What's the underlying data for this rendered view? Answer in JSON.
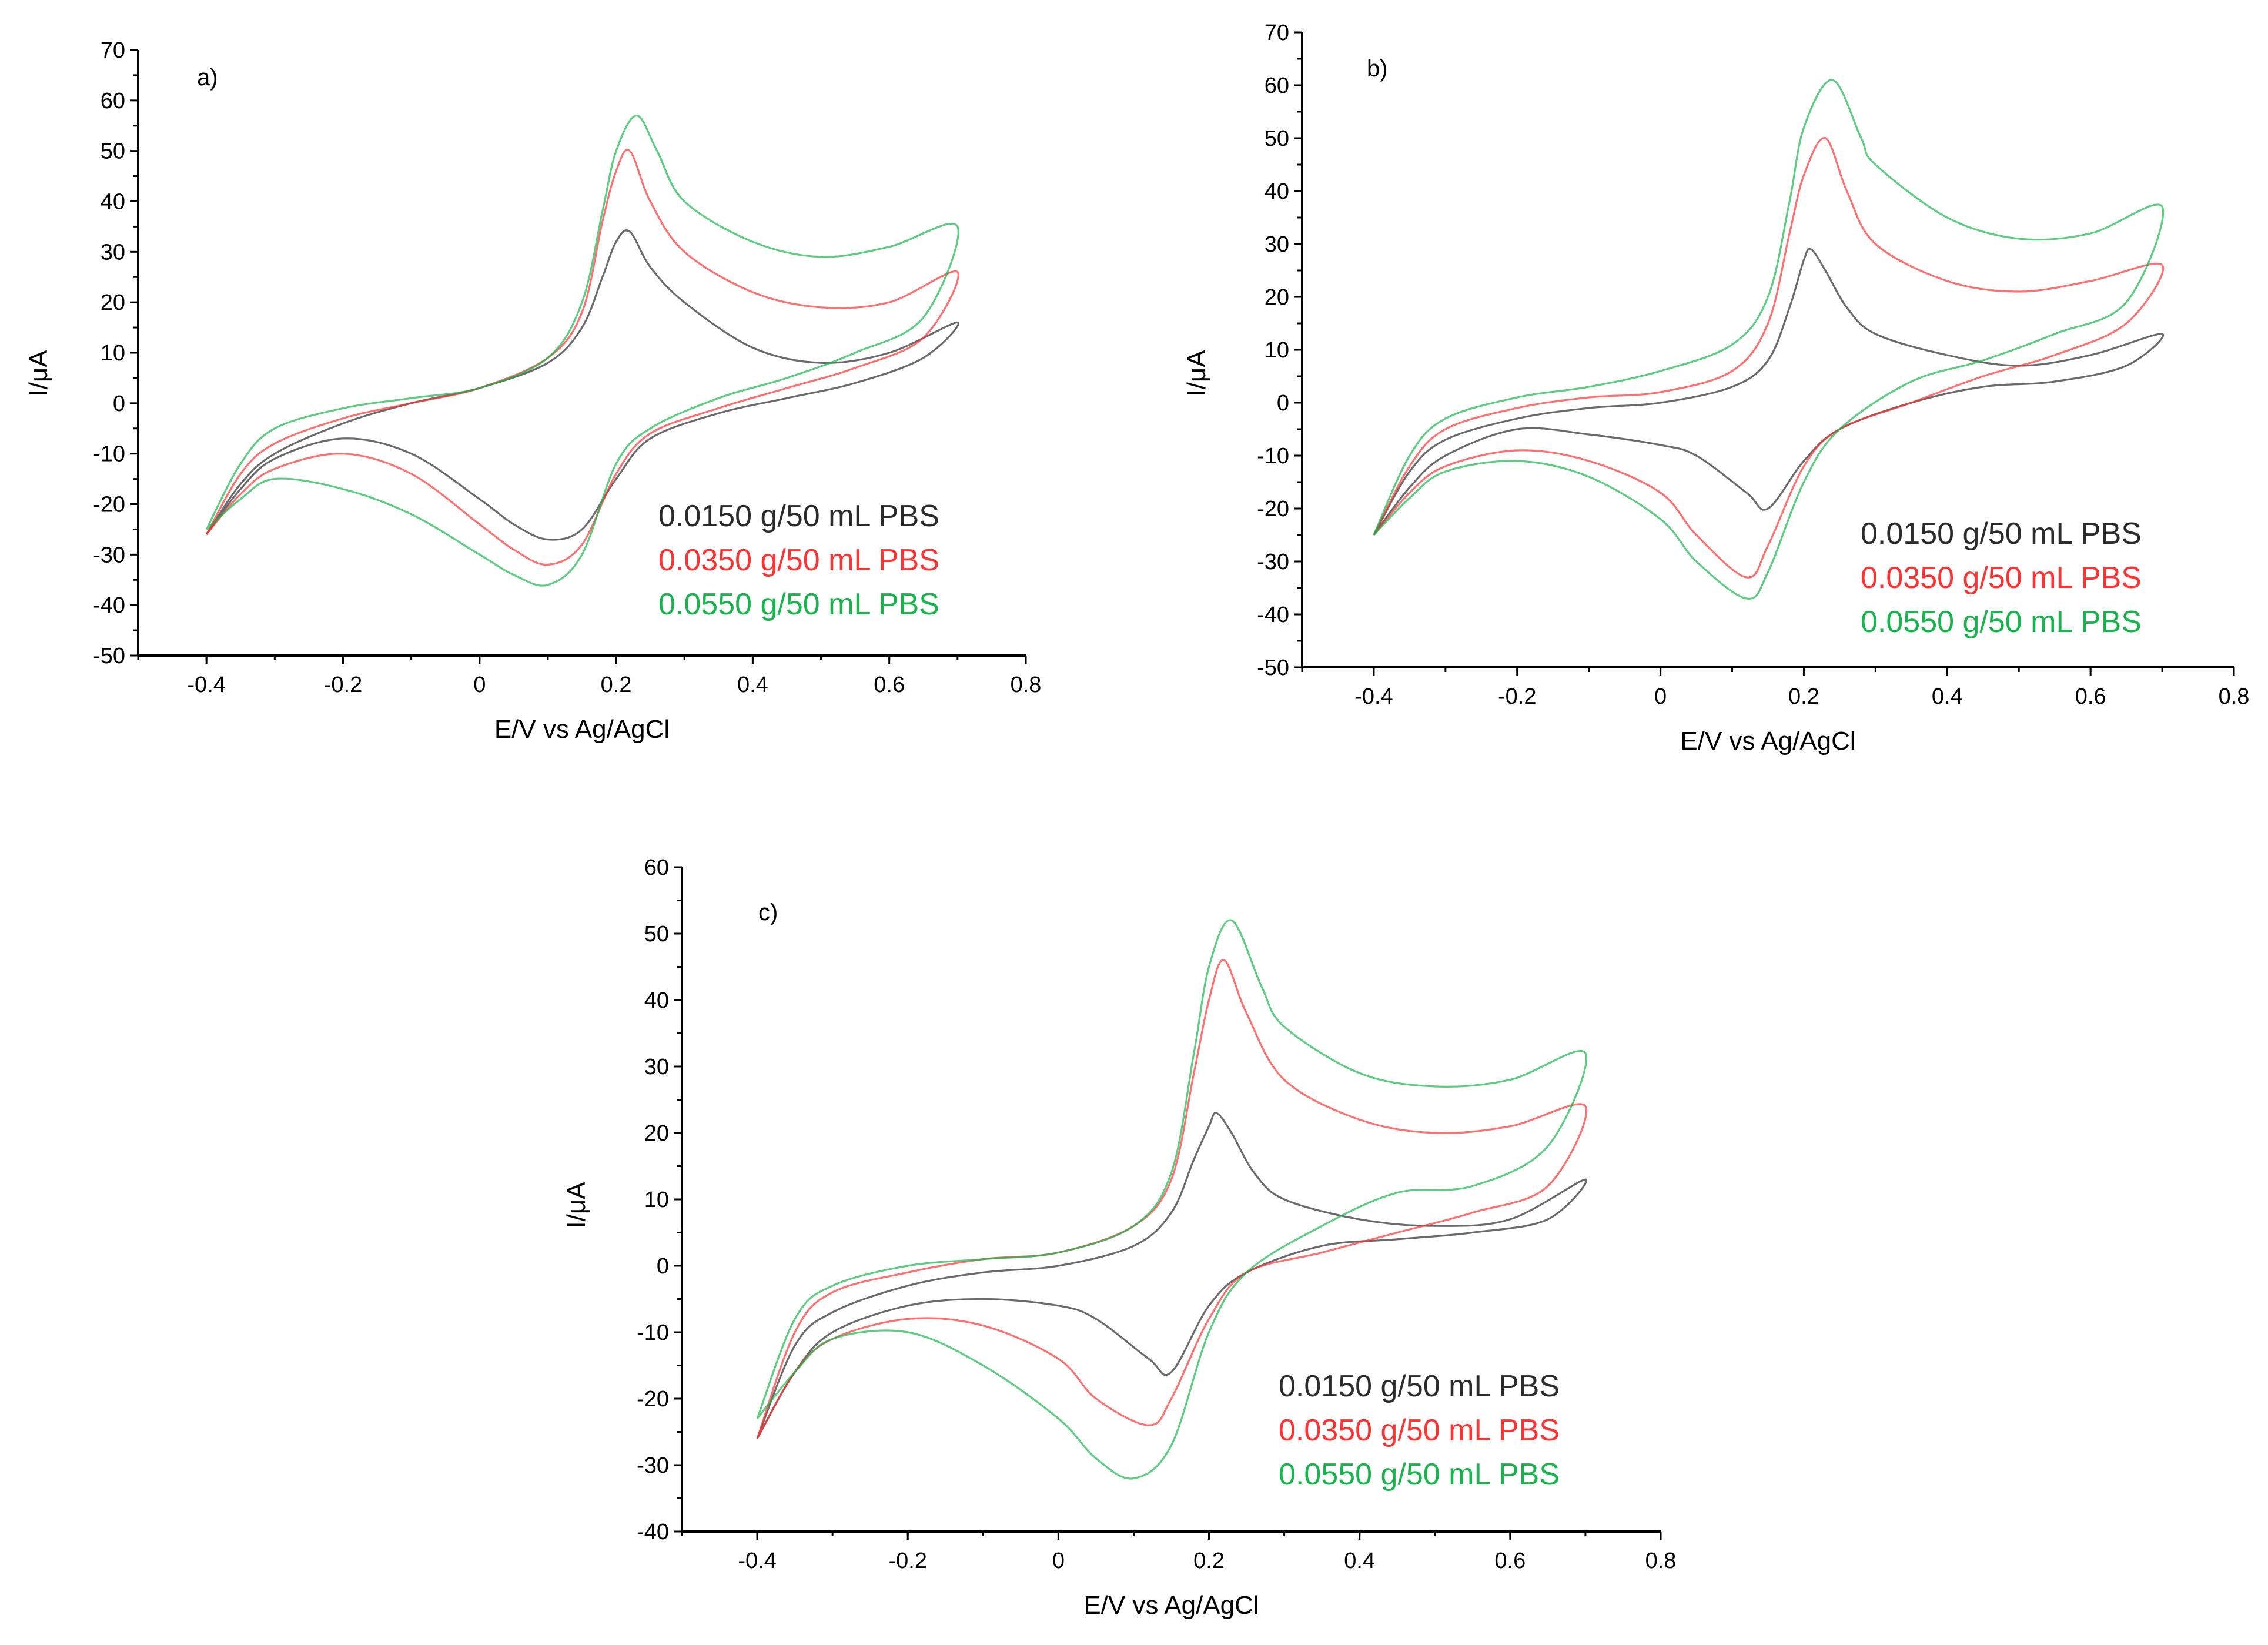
{
  "series_colors": [
    "#2b2b2b",
    "#ff3333",
    "#19b34d"
  ],
  "chart_data": [
    {
      "type": "line",
      "panel_label": "a)",
      "xlabel": "E/V vs Ag/AgCl",
      "ylabel": "I/μA",
      "xlim": [
        -0.5,
        0.8
      ],
      "ylim": [
        -50,
        70
      ],
      "xticks": [
        -0.4,
        -0.2,
        0,
        0.2,
        0.4,
        0.6,
        0.8
      ],
      "xtick_labels": [
        "-0.4",
        "-0.2",
        "0",
        "0.2",
        "0.4",
        "0.6",
        "0.8"
      ],
      "yticks": [
        -50,
        -40,
        -30,
        -20,
        -10,
        0,
        10,
        20,
        30,
        40,
        50,
        60,
        70
      ],
      "ytick_labels": [
        "-50",
        "-40",
        "-30",
        "-20",
        "-10",
        "0",
        "10",
        "20",
        "30",
        "40",
        "50",
        "60",
        "70"
      ],
      "legend": [
        "0.0150 g/50 mL PBS",
        "0.0350 g/50 mL PBS",
        "0.0550 g/50 mL PBS"
      ],
      "series": [
        {
          "name": "0.0150 g/50 mL PBS",
          "x": [
            -0.4,
            -0.35,
            -0.3,
            -0.2,
            -0.1,
            0,
            0.1,
            0.15,
            0.18,
            0.2,
            0.22,
            0.25,
            0.3,
            0.4,
            0.5,
            0.6,
            0.7,
            0.65,
            0.55,
            0.45,
            0.35,
            0.25,
            0.2,
            0.15,
            0.1,
            0.05,
            0,
            -0.1,
            -0.2,
            -0.3,
            -0.35,
            -0.4
          ],
          "y": [
            -26,
            -16,
            -10,
            -4,
            0,
            3,
            8,
            15,
            25,
            32,
            34,
            27,
            20,
            11,
            8,
            10,
            16,
            9,
            4,
            1,
            -2,
            -7,
            -15,
            -25,
            -27,
            -24,
            -19,
            -10,
            -7,
            -11,
            -17,
            -26
          ]
        },
        {
          "name": "0.0350 g/50 mL PBS",
          "x": [
            -0.4,
            -0.35,
            -0.3,
            -0.2,
            -0.1,
            0,
            0.1,
            0.15,
            0.18,
            0.2,
            0.22,
            0.25,
            0.3,
            0.4,
            0.5,
            0.6,
            0.7,
            0.65,
            0.55,
            0.45,
            0.35,
            0.25,
            0.2,
            0.15,
            0.1,
            0.05,
            0,
            -0.1,
            -0.2,
            -0.3,
            -0.35,
            -0.4
          ],
          "y": [
            -26,
            -14,
            -8,
            -3,
            0,
            3,
            9,
            18,
            36,
            46,
            50,
            40,
            30,
            22,
            19,
            20,
            26,
            13,
            7,
            3,
            -1,
            -6,
            -14,
            -28,
            -32,
            -29,
            -24,
            -14,
            -10,
            -13,
            -18,
            -26
          ]
        },
        {
          "name": "0.0550 g/50 mL PBS",
          "x": [
            -0.4,
            -0.35,
            -0.3,
            -0.2,
            -0.1,
            0,
            0.1,
            0.15,
            0.18,
            0.2,
            0.23,
            0.26,
            0.3,
            0.4,
            0.5,
            0.6,
            0.7,
            0.65,
            0.55,
            0.45,
            0.35,
            0.25,
            0.2,
            0.15,
            0.1,
            0.05,
            0,
            -0.1,
            -0.2,
            -0.3,
            -0.35,
            -0.4
          ],
          "y": [
            -25,
            -12,
            -5,
            -1,
            1,
            3,
            9,
            20,
            38,
            50,
            57,
            50,
            40,
            32,
            29,
            31,
            35,
            17,
            10,
            5,
            1,
            -5,
            -12,
            -30,
            -36,
            -34,
            -30,
            -22,
            -17,
            -15,
            -19,
            -25
          ]
        }
      ]
    },
    {
      "type": "line",
      "panel_label": "b)",
      "xlabel": "E/V vs Ag/AgCl",
      "ylabel": "I/μA",
      "xlim": [
        -0.5,
        0.8
      ],
      "ylim": [
        -50,
        70
      ],
      "xticks": [
        -0.4,
        -0.2,
        0,
        0.2,
        0.4,
        0.6,
        0.8
      ],
      "xtick_labels": [
        "-0.4",
        "-0.2",
        "0",
        "0.2",
        "0.4",
        "0.6",
        "0.8"
      ],
      "yticks": [
        -50,
        -40,
        -30,
        -20,
        -10,
        0,
        10,
        20,
        30,
        40,
        50,
        60,
        70
      ],
      "ytick_labels": [
        "-50",
        "-40",
        "-30",
        "-20",
        "-10",
        "0",
        "10",
        "20",
        "30",
        "40",
        "50",
        "60",
        "70"
      ],
      "legend": [
        "0.0150 g/50 mL PBS",
        "0.0350 g/50 mL PBS",
        "0.0550 g/50 mL PBS"
      ],
      "series": [
        {
          "name": "0.0150 g/50 mL PBS",
          "x": [
            -0.4,
            -0.35,
            -0.3,
            -0.2,
            -0.1,
            0,
            0.1,
            0.15,
            0.18,
            0.2,
            0.21,
            0.23,
            0.26,
            0.3,
            0.4,
            0.5,
            0.6,
            0.7,
            0.65,
            0.55,
            0.45,
            0.35,
            0.25,
            0.2,
            0.15,
            0.12,
            0.05,
            0,
            -0.1,
            -0.2,
            -0.3,
            -0.35,
            -0.4
          ],
          "y": [
            -25,
            -13,
            -7,
            -3,
            -1,
            0,
            3,
            8,
            18,
            27,
            29,
            25,
            18,
            13,
            9,
            7,
            9,
            13,
            7,
            4,
            3,
            0,
            -5,
            -11,
            -20,
            -17,
            -10,
            -8,
            -6,
            -5,
            -10,
            -16,
            -25
          ]
        },
        {
          "name": "0.0350 g/50 mL PBS",
          "x": [
            -0.4,
            -0.35,
            -0.3,
            -0.2,
            -0.1,
            0,
            0.1,
            0.15,
            0.18,
            0.2,
            0.23,
            0.26,
            0.3,
            0.4,
            0.5,
            0.6,
            0.7,
            0.65,
            0.55,
            0.45,
            0.35,
            0.25,
            0.2,
            0.15,
            0.12,
            0.05,
            0,
            -0.1,
            -0.2,
            -0.3,
            -0.35,
            -0.4
          ],
          "y": [
            -25,
            -12,
            -5,
            -1,
            1,
            2,
            6,
            15,
            32,
            43,
            50,
            40,
            30,
            23,
            21,
            23,
            26,
            15,
            9,
            5,
            0,
            -5,
            -12,
            -27,
            -33,
            -25,
            -17,
            -11,
            -9,
            -12,
            -17,
            -25
          ]
        },
        {
          "name": "0.0550 g/50 mL PBS",
          "x": [
            -0.4,
            -0.35,
            -0.3,
            -0.2,
            -0.1,
            0,
            0.1,
            0.15,
            0.18,
            0.2,
            0.24,
            0.28,
            0.3,
            0.4,
            0.5,
            0.6,
            0.7,
            0.65,
            0.55,
            0.45,
            0.35,
            0.25,
            0.2,
            0.15,
            0.12,
            0.05,
            0,
            -0.1,
            -0.2,
            -0.3,
            -0.35,
            -0.4
          ],
          "y": [
            -25,
            -10,
            -3,
            1,
            3,
            6,
            11,
            20,
            38,
            52,
            61,
            50,
            45,
            35,
            31,
            32,
            37,
            19,
            13,
            8,
            4,
            -5,
            -15,
            -32,
            -37,
            -30,
            -22,
            -14,
            -11,
            -13,
            -18,
            -25
          ]
        }
      ]
    },
    {
      "type": "line",
      "panel_label": "c)",
      "xlabel": "E/V vs Ag/AgCl",
      "ylabel": "I/μA",
      "xlim": [
        -0.5,
        0.8
      ],
      "ylim": [
        -40,
        60
      ],
      "xticks": [
        -0.4,
        -0.2,
        0,
        0.2,
        0.4,
        0.6,
        0.8
      ],
      "xtick_labels": [
        "-0.4",
        "-0.2",
        "0",
        "0.2",
        "0.4",
        "0.6",
        "0.8"
      ],
      "yticks": [
        -40,
        -30,
        -20,
        -10,
        0,
        10,
        20,
        30,
        40,
        50,
        60
      ],
      "ytick_labels": [
        "-40",
        "-30",
        "-20",
        "-10",
        "0",
        "10",
        "20",
        "30",
        "40",
        "50",
        "60"
      ],
      "legend": [
        "0.0150 g/50 mL PBS",
        "0.0350 g/50 mL PBS",
        "0.0550 g/50 mL PBS"
      ],
      "series": [
        {
          "name": "0.0150 g/50 mL PBS",
          "x": [
            -0.4,
            -0.35,
            -0.3,
            -0.2,
            -0.1,
            0,
            0.1,
            0.15,
            0.18,
            0.2,
            0.21,
            0.23,
            0.26,
            0.3,
            0.4,
            0.5,
            0.6,
            0.7,
            0.65,
            0.55,
            0.45,
            0.35,
            0.25,
            0.2,
            0.15,
            0.12,
            0.05,
            0,
            -0.1,
            -0.2,
            -0.3,
            -0.35,
            -0.4
          ],
          "y": [
            -26,
            -12,
            -7,
            -3,
            -1,
            0,
            3,
            8,
            16,
            21,
            23,
            20,
            14,
            10,
            7,
            6,
            7,
            13,
            7,
            5,
            4,
            3,
            -1,
            -6,
            -16,
            -14,
            -8,
            -6,
            -5,
            -6,
            -10,
            -16,
            -26
          ]
        },
        {
          "name": "0.0350 g/50 mL PBS",
          "x": [
            -0.4,
            -0.35,
            -0.3,
            -0.2,
            -0.1,
            0,
            0.1,
            0.15,
            0.18,
            0.2,
            0.22,
            0.25,
            0.3,
            0.4,
            0.5,
            0.6,
            0.7,
            0.65,
            0.55,
            0.45,
            0.35,
            0.25,
            0.2,
            0.15,
            0.12,
            0.05,
            0,
            -0.1,
            -0.2,
            -0.3,
            -0.35,
            -0.4
          ],
          "y": [
            -26,
            -10,
            -4,
            -1,
            1,
            2,
            6,
            13,
            29,
            40,
            46,
            38,
            28,
            22,
            20,
            21,
            24,
            12,
            8,
            5,
            2,
            -1,
            -8,
            -20,
            -24,
            -20,
            -14,
            -9,
            -8,
            -11,
            -16,
            -26
          ]
        },
        {
          "name": "0.0550 g/50 mL PBS",
          "x": [
            -0.4,
            -0.35,
            -0.3,
            -0.2,
            -0.1,
            0,
            0.1,
            0.15,
            0.18,
            0.2,
            0.23,
            0.27,
            0.3,
            0.4,
            0.5,
            0.6,
            0.7,
            0.65,
            0.55,
            0.45,
            0.35,
            0.25,
            0.2,
            0.15,
            0.1,
            0.05,
            0,
            -0.1,
            -0.2,
            -0.3,
            -0.35,
            -0.4
          ],
          "y": [
            -23,
            -8,
            -3,
            0,
            1,
            2,
            6,
            14,
            32,
            45,
            52,
            42,
            36,
            29,
            27,
            28,
            32,
            18,
            12,
            11,
            6,
            -1,
            -10,
            -27,
            -32,
            -29,
            -23,
            -15,
            -10,
            -11,
            -16,
            -23
          ]
        }
      ]
    }
  ]
}
